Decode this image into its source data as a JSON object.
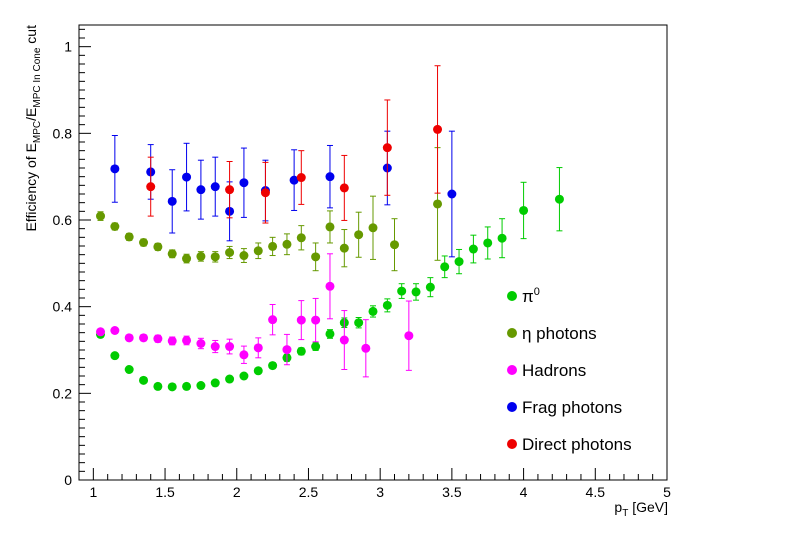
{
  "chart_data": {
    "type": "scatter",
    "xlabel": {
      "main": "p",
      "sub": "T",
      "rest": " [GeV]"
    },
    "ylabel": {
      "p1": "Efficiency of E",
      "s1": "MPC",
      "p2": "/E",
      "s2": "MPC In Cone",
      "p3": " cut"
    },
    "xlim": [
      0.9,
      5.0
    ],
    "ylim": [
      0,
      1.05
    ],
    "x_ticks": [
      "1",
      "1.5",
      "2",
      "2.5",
      "3",
      "3.5",
      "4",
      "4.5",
      "5"
    ],
    "y_ticks": [
      "0",
      "0.2",
      "0.4",
      "0.6",
      "0.8",
      "1"
    ],
    "grid": false,
    "legend_position": "bottom-right",
    "series": [
      {
        "name": "π",
        "name_sup": "0",
        "color": "#00cc00",
        "points": [
          {
            "x": 1.05,
            "y": 0.336,
            "e": 0.006
          },
          {
            "x": 1.15,
            "y": 0.287,
            "e": 0.005
          },
          {
            "x": 1.25,
            "y": 0.255,
            "e": 0.005
          },
          {
            "x": 1.35,
            "y": 0.23,
            "e": 0.005
          },
          {
            "x": 1.45,
            "y": 0.216,
            "e": 0.005
          },
          {
            "x": 1.55,
            "y": 0.215,
            "e": 0.005
          },
          {
            "x": 1.65,
            "y": 0.216,
            "e": 0.005
          },
          {
            "x": 1.75,
            "y": 0.218,
            "e": 0.005
          },
          {
            "x": 1.85,
            "y": 0.224,
            "e": 0.005
          },
          {
            "x": 1.95,
            "y": 0.233,
            "e": 0.006
          },
          {
            "x": 2.05,
            "y": 0.24,
            "e": 0.006
          },
          {
            "x": 2.15,
            "y": 0.252,
            "e": 0.006
          },
          {
            "x": 2.25,
            "y": 0.264,
            "e": 0.007
          },
          {
            "x": 2.35,
            "y": 0.282,
            "e": 0.008
          },
          {
            "x": 2.45,
            "y": 0.297,
            "e": 0.008
          },
          {
            "x": 2.55,
            "y": 0.308,
            "e": 0.009
          },
          {
            "x": 2.65,
            "y": 0.337,
            "e": 0.01
          },
          {
            "x": 2.75,
            "y": 0.363,
            "e": 0.011
          },
          {
            "x": 2.85,
            "y": 0.363,
            "e": 0.012
          },
          {
            "x": 2.95,
            "y": 0.389,
            "e": 0.013
          },
          {
            "x": 3.05,
            "y": 0.403,
            "e": 0.015
          },
          {
            "x": 3.15,
            "y": 0.436,
            "e": 0.017
          },
          {
            "x": 3.25,
            "y": 0.434,
            "e": 0.019
          },
          {
            "x": 3.35,
            "y": 0.445,
            "e": 0.022
          },
          {
            "x": 3.45,
            "y": 0.492,
            "e": 0.025
          },
          {
            "x": 3.55,
            "y": 0.504,
            "e": 0.028
          },
          {
            "x": 3.65,
            "y": 0.533,
            "e": 0.032
          },
          {
            "x": 3.75,
            "y": 0.547,
            "e": 0.037
          },
          {
            "x": 3.85,
            "y": 0.558,
            "e": 0.045
          },
          {
            "x": 4.0,
            "y": 0.622,
            "e": 0.065
          },
          {
            "x": 4.25,
            "y": 0.648,
            "e": 0.073
          }
        ]
      },
      {
        "name": "η photons",
        "color": "#669900",
        "points": [
          {
            "x": 1.05,
            "y": 0.609,
            "e": 0.01
          },
          {
            "x": 1.15,
            "y": 0.585,
            "e": 0.008
          },
          {
            "x": 1.25,
            "y": 0.561,
            "e": 0.008
          },
          {
            "x": 1.35,
            "y": 0.548,
            "e": 0.008
          },
          {
            "x": 1.45,
            "y": 0.538,
            "e": 0.008
          },
          {
            "x": 1.55,
            "y": 0.522,
            "e": 0.009
          },
          {
            "x": 1.65,
            "y": 0.511,
            "e": 0.01
          },
          {
            "x": 1.75,
            "y": 0.516,
            "e": 0.011
          },
          {
            "x": 1.85,
            "y": 0.515,
            "e": 0.012
          },
          {
            "x": 1.95,
            "y": 0.525,
            "e": 0.014
          },
          {
            "x": 2.05,
            "y": 0.518,
            "e": 0.016
          },
          {
            "x": 2.15,
            "y": 0.529,
            "e": 0.018
          },
          {
            "x": 2.25,
            "y": 0.539,
            "e": 0.021
          },
          {
            "x": 2.35,
            "y": 0.544,
            "e": 0.024
          },
          {
            "x": 2.45,
            "y": 0.559,
            "e": 0.028
          },
          {
            "x": 2.55,
            "y": 0.515,
            "e": 0.032
          },
          {
            "x": 2.65,
            "y": 0.584,
            "e": 0.037
          },
          {
            "x": 2.75,
            "y": 0.535,
            "e": 0.043
          },
          {
            "x": 2.85,
            "y": 0.566,
            "e": 0.052
          },
          {
            "x": 2.95,
            "y": 0.582,
            "e": 0.073
          },
          {
            "x": 3.1,
            "y": 0.543,
            "e": 0.06
          },
          {
            "x": 3.4,
            "y": 0.637,
            "e": 0.13
          }
        ]
      },
      {
        "name": "Hadrons",
        "color": "#ff00ff",
        "points": [
          {
            "x": 1.05,
            "y": 0.342,
            "e": 0.006
          },
          {
            "x": 1.15,
            "y": 0.345,
            "e": 0.006
          },
          {
            "x": 1.25,
            "y": 0.328,
            "e": 0.006
          },
          {
            "x": 1.35,
            "y": 0.328,
            "e": 0.007
          },
          {
            "x": 1.45,
            "y": 0.326,
            "e": 0.008
          },
          {
            "x": 1.55,
            "y": 0.321,
            "e": 0.009
          },
          {
            "x": 1.65,
            "y": 0.322,
            "e": 0.01
          },
          {
            "x": 1.75,
            "y": 0.315,
            "e": 0.012
          },
          {
            "x": 1.85,
            "y": 0.308,
            "e": 0.014
          },
          {
            "x": 1.95,
            "y": 0.308,
            "e": 0.017
          },
          {
            "x": 2.05,
            "y": 0.289,
            "e": 0.02
          },
          {
            "x": 2.15,
            "y": 0.305,
            "e": 0.023
          },
          {
            "x": 2.25,
            "y": 0.37,
            "e": 0.035
          },
          {
            "x": 2.35,
            "y": 0.301,
            "e": 0.035
          },
          {
            "x": 2.45,
            "y": 0.369,
            "e": 0.045
          },
          {
            "x": 2.55,
            "y": 0.369,
            "e": 0.05
          },
          {
            "x": 2.65,
            "y": 0.447,
            "e": 0.075
          },
          {
            "x": 2.75,
            "y": 0.323,
            "e": 0.068
          },
          {
            "x": 2.9,
            "y": 0.304,
            "e": 0.066
          },
          {
            "x": 3.2,
            "y": 0.333,
            "e": 0.08
          }
        ]
      },
      {
        "name": "Frag photons",
        "color": "#0000ee",
        "points": [
          {
            "x": 1.15,
            "y": 0.718,
            "e": 0.077
          },
          {
            "x": 1.4,
            "y": 0.711,
            "e": 0.063
          },
          {
            "x": 1.55,
            "y": 0.643,
            "e": 0.073
          },
          {
            "x": 1.65,
            "y": 0.699,
            "e": 0.078
          },
          {
            "x": 1.75,
            "y": 0.67,
            "e": 0.068
          },
          {
            "x": 1.85,
            "y": 0.677,
            "e": 0.068
          },
          {
            "x": 1.95,
            "y": 0.62,
            "e": 0.068
          },
          {
            "x": 2.05,
            "y": 0.686,
            "e": 0.08
          },
          {
            "x": 2.2,
            "y": 0.668,
            "e": 0.07
          },
          {
            "x": 2.4,
            "y": 0.692,
            "e": 0.07
          },
          {
            "x": 2.65,
            "y": 0.7,
            "e": 0.072
          },
          {
            "x": 3.05,
            "y": 0.72,
            "e": 0.085
          },
          {
            "x": 3.5,
            "y": 0.66,
            "e": 0.145
          }
        ]
      },
      {
        "name": "Direct photons",
        "color": "#ee0000",
        "points": [
          {
            "x": 1.4,
            "y": 0.677,
            "e": 0.068
          },
          {
            "x": 1.95,
            "y": 0.67,
            "e": 0.065
          },
          {
            "x": 2.2,
            "y": 0.663,
            "e": 0.07
          },
          {
            "x": 2.45,
            "y": 0.698,
            "e": 0.062
          },
          {
            "x": 2.75,
            "y": 0.674,
            "e": 0.075
          },
          {
            "x": 3.05,
            "y": 0.767,
            "e": 0.11
          },
          {
            "x": 3.4,
            "y": 0.809,
            "e": 0.147
          }
        ]
      }
    ]
  }
}
